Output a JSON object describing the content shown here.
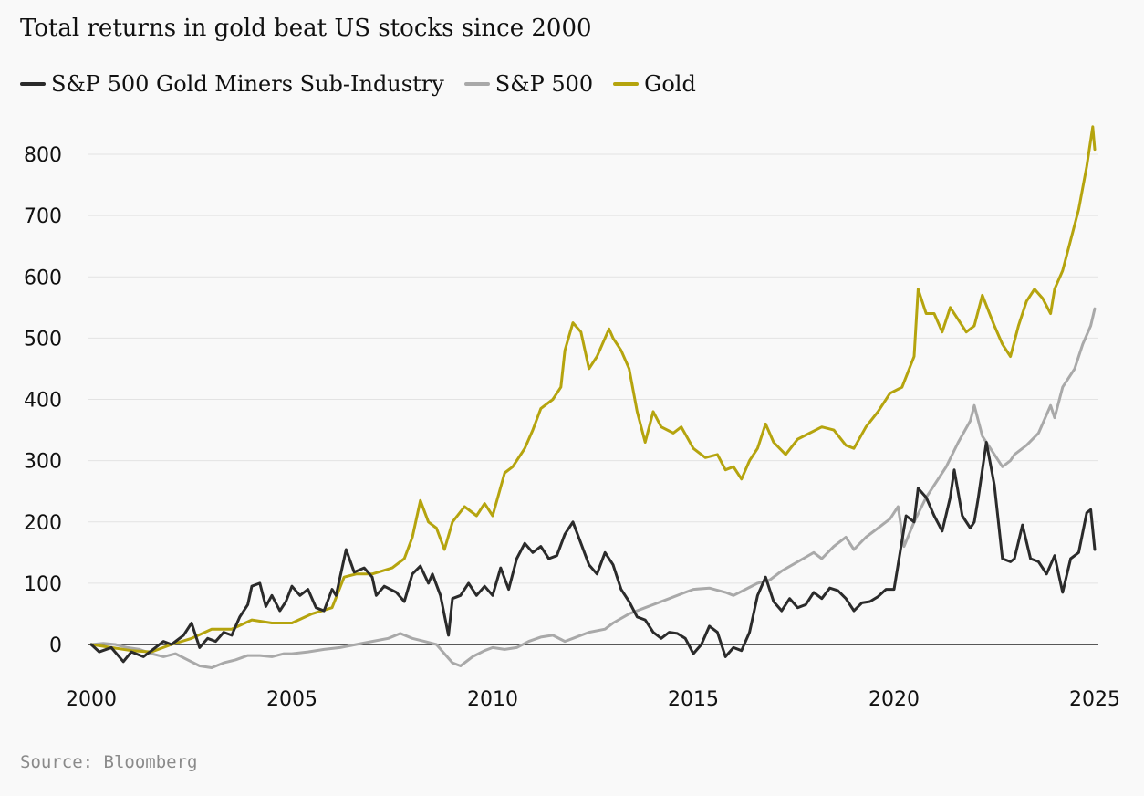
{
  "chart_data": {
    "type": "line",
    "title": "Total returns in gold beat US stocks since 2000",
    "xlabel": "",
    "ylabel": "",
    "xlim": [
      2000,
      2025
    ],
    "ylim": [
      -40,
      870
    ],
    "x_ticks": [
      "2000",
      "2005",
      "2010",
      "2015",
      "2020",
      "2025"
    ],
    "y_ticks": [
      "0",
      "100",
      "200",
      "300",
      "400",
      "500",
      "600",
      "700",
      "800"
    ],
    "grid": true,
    "legend_position": "top-left",
    "source": "Source: Bloomberg",
    "series": [
      {
        "name": "S&P 500 Gold Miners Sub-Industry",
        "color": "#2b2b2b",
        "points": [
          [
            2000.0,
            0
          ],
          [
            2000.2,
            -12
          ],
          [
            2000.5,
            -5
          ],
          [
            2000.8,
            -28
          ],
          [
            2001.0,
            -12
          ],
          [
            2001.3,
            -20
          ],
          [
            2001.6,
            -5
          ],
          [
            2001.8,
            5
          ],
          [
            2002.0,
            0
          ],
          [
            2002.3,
            15
          ],
          [
            2002.5,
            35
          ],
          [
            2002.7,
            -5
          ],
          [
            2002.9,
            10
          ],
          [
            2003.1,
            5
          ],
          [
            2003.3,
            20
          ],
          [
            2003.5,
            15
          ],
          [
            2003.7,
            45
          ],
          [
            2003.9,
            65
          ],
          [
            2004.0,
            95
          ],
          [
            2004.2,
            100
          ],
          [
            2004.35,
            62
          ],
          [
            2004.5,
            80
          ],
          [
            2004.7,
            55
          ],
          [
            2004.85,
            70
          ],
          [
            2005.0,
            95
          ],
          [
            2005.2,
            80
          ],
          [
            2005.4,
            90
          ],
          [
            2005.6,
            60
          ],
          [
            2005.8,
            55
          ],
          [
            2006.0,
            90
          ],
          [
            2006.1,
            80
          ],
          [
            2006.35,
            155
          ],
          [
            2006.55,
            118
          ],
          [
            2006.8,
            125
          ],
          [
            2007.0,
            110
          ],
          [
            2007.1,
            80
          ],
          [
            2007.3,
            95
          ],
          [
            2007.6,
            85
          ],
          [
            2007.8,
            70
          ],
          [
            2008.0,
            115
          ],
          [
            2008.2,
            128
          ],
          [
            2008.4,
            100
          ],
          [
            2008.5,
            115
          ],
          [
            2008.7,
            80
          ],
          [
            2008.9,
            15
          ],
          [
            2009.0,
            75
          ],
          [
            2009.2,
            80
          ],
          [
            2009.4,
            100
          ],
          [
            2009.6,
            80
          ],
          [
            2009.8,
            95
          ],
          [
            2010.0,
            80
          ],
          [
            2010.2,
            125
          ],
          [
            2010.4,
            90
          ],
          [
            2010.6,
            140
          ],
          [
            2010.8,
            165
          ],
          [
            2011.0,
            150
          ],
          [
            2011.2,
            160
          ],
          [
            2011.4,
            140
          ],
          [
            2011.6,
            145
          ],
          [
            2011.8,
            180
          ],
          [
            2012.0,
            200
          ],
          [
            2012.2,
            165
          ],
          [
            2012.4,
            130
          ],
          [
            2012.6,
            115
          ],
          [
            2012.8,
            150
          ],
          [
            2013.0,
            130
          ],
          [
            2013.2,
            90
          ],
          [
            2013.4,
            70
          ],
          [
            2013.6,
            45
          ],
          [
            2013.8,
            40
          ],
          [
            2014.0,
            20
          ],
          [
            2014.2,
            10
          ],
          [
            2014.4,
            20
          ],
          [
            2014.6,
            18
          ],
          [
            2014.8,
            10
          ],
          [
            2015.0,
            -15
          ],
          [
            2015.2,
            0
          ],
          [
            2015.4,
            30
          ],
          [
            2015.6,
            20
          ],
          [
            2015.8,
            -20
          ],
          [
            2016.0,
            -5
          ],
          [
            2016.2,
            -10
          ],
          [
            2016.4,
            20
          ],
          [
            2016.6,
            80
          ],
          [
            2016.8,
            110
          ],
          [
            2017.0,
            70
          ],
          [
            2017.2,
            55
          ],
          [
            2017.4,
            75
          ],
          [
            2017.6,
            60
          ],
          [
            2017.8,
            65
          ],
          [
            2018.0,
            85
          ],
          [
            2018.2,
            75
          ],
          [
            2018.4,
            92
          ],
          [
            2018.6,
            88
          ],
          [
            2018.8,
            75
          ],
          [
            2019.0,
            55
          ],
          [
            2019.2,
            68
          ],
          [
            2019.4,
            70
          ],
          [
            2019.6,
            78
          ],
          [
            2019.8,
            90
          ],
          [
            2020.0,
            90
          ],
          [
            2020.1,
            130
          ],
          [
            2020.3,
            210
          ],
          [
            2020.5,
            200
          ],
          [
            2020.6,
            255
          ],
          [
            2020.8,
            240
          ],
          [
            2021.0,
            210
          ],
          [
            2021.2,
            185
          ],
          [
            2021.4,
            240
          ],
          [
            2021.5,
            285
          ],
          [
            2021.7,
            210
          ],
          [
            2021.9,
            190
          ],
          [
            2022.0,
            200
          ],
          [
            2022.1,
            240
          ],
          [
            2022.3,
            330
          ],
          [
            2022.5,
            260
          ],
          [
            2022.7,
            140
          ],
          [
            2022.9,
            135
          ],
          [
            2023.0,
            140
          ],
          [
            2023.2,
            195
          ],
          [
            2023.4,
            140
          ],
          [
            2023.6,
            135
          ],
          [
            2023.8,
            115
          ],
          [
            2024.0,
            145
          ],
          [
            2024.2,
            85
          ],
          [
            2024.4,
            140
          ],
          [
            2024.6,
            150
          ],
          [
            2024.8,
            215
          ],
          [
            2024.9,
            220
          ],
          [
            2025.0,
            155
          ]
        ]
      },
      {
        "name": "S&P 500",
        "color": "#a9a9a9",
        "points": [
          [
            2000.0,
            0
          ],
          [
            2000.3,
            2
          ],
          [
            2000.6,
            0
          ],
          [
            2000.9,
            -5
          ],
          [
            2001.2,
            -8
          ],
          [
            2001.5,
            -15
          ],
          [
            2001.8,
            -20
          ],
          [
            2002.1,
            -15
          ],
          [
            2002.4,
            -25
          ],
          [
            2002.7,
            -35
          ],
          [
            2003.0,
            -38
          ],
          [
            2003.3,
            -30
          ],
          [
            2003.6,
            -25
          ],
          [
            2003.9,
            -18
          ],
          [
            2004.2,
            -18
          ],
          [
            2004.5,
            -20
          ],
          [
            2004.8,
            -15
          ],
          [
            2005.0,
            -15
          ],
          [
            2005.4,
            -12
          ],
          [
            2005.8,
            -8
          ],
          [
            2006.2,
            -5
          ],
          [
            2006.6,
            0
          ],
          [
            2007.0,
            5
          ],
          [
            2007.4,
            10
          ],
          [
            2007.7,
            18
          ],
          [
            2008.0,
            10
          ],
          [
            2008.3,
            5
          ],
          [
            2008.6,
            0
          ],
          [
            2008.8,
            -15
          ],
          [
            2009.0,
            -30
          ],
          [
            2009.2,
            -35
          ],
          [
            2009.5,
            -20
          ],
          [
            2009.8,
            -10
          ],
          [
            2010.0,
            -5
          ],
          [
            2010.3,
            -8
          ],
          [
            2010.6,
            -5
          ],
          [
            2010.9,
            5
          ],
          [
            2011.2,
            12
          ],
          [
            2011.5,
            15
          ],
          [
            2011.8,
            5
          ],
          [
            2012.0,
            10
          ],
          [
            2012.4,
            20
          ],
          [
            2012.8,
            25
          ],
          [
            2013.0,
            35
          ],
          [
            2013.4,
            50
          ],
          [
            2013.8,
            60
          ],
          [
            2014.0,
            65
          ],
          [
            2014.4,
            75
          ],
          [
            2014.8,
            85
          ],
          [
            2015.0,
            90
          ],
          [
            2015.4,
            92
          ],
          [
            2015.8,
            85
          ],
          [
            2016.0,
            80
          ],
          [
            2016.3,
            90
          ],
          [
            2016.6,
            100
          ],
          [
            2016.9,
            105
          ],
          [
            2017.2,
            120
          ],
          [
            2017.6,
            135
          ],
          [
            2018.0,
            150
          ],
          [
            2018.2,
            140
          ],
          [
            2018.5,
            160
          ],
          [
            2018.8,
            175
          ],
          [
            2019.0,
            155
          ],
          [
            2019.3,
            175
          ],
          [
            2019.6,
            190
          ],
          [
            2019.9,
            205
          ],
          [
            2020.1,
            225
          ],
          [
            2020.25,
            160
          ],
          [
            2020.5,
            200
          ],
          [
            2020.8,
            240
          ],
          [
            2021.0,
            260
          ],
          [
            2021.3,
            290
          ],
          [
            2021.6,
            330
          ],
          [
            2021.9,
            365
          ],
          [
            2022.0,
            390
          ],
          [
            2022.2,
            340
          ],
          [
            2022.4,
            320
          ],
          [
            2022.7,
            290
          ],
          [
            2022.9,
            300
          ],
          [
            2023.0,
            310
          ],
          [
            2023.3,
            325
          ],
          [
            2023.6,
            345
          ],
          [
            2023.9,
            390
          ],
          [
            2024.0,
            370
          ],
          [
            2024.2,
            420
          ],
          [
            2024.5,
            450
          ],
          [
            2024.7,
            490
          ],
          [
            2024.9,
            520
          ],
          [
            2025.0,
            548
          ]
        ]
      },
      {
        "name": "Gold",
        "color": "#b5a40e",
        "points": [
          [
            2000.0,
            0
          ],
          [
            2000.5,
            -5
          ],
          [
            2001.0,
            -10
          ],
          [
            2001.5,
            -12
          ],
          [
            2002.0,
            0
          ],
          [
            2002.5,
            10
          ],
          [
            2003.0,
            25
          ],
          [
            2003.5,
            25
          ],
          [
            2004.0,
            40
          ],
          [
            2004.5,
            35
          ],
          [
            2005.0,
            35
          ],
          [
            2005.5,
            50
          ],
          [
            2006.0,
            60
          ],
          [
            2006.3,
            110
          ],
          [
            2006.6,
            115
          ],
          [
            2007.0,
            115
          ],
          [
            2007.5,
            125
          ],
          [
            2007.8,
            140
          ],
          [
            2008.0,
            175
          ],
          [
            2008.2,
            235
          ],
          [
            2008.4,
            200
          ],
          [
            2008.6,
            190
          ],
          [
            2008.8,
            155
          ],
          [
            2009.0,
            200
          ],
          [
            2009.3,
            225
          ],
          [
            2009.6,
            210
          ],
          [
            2009.8,
            230
          ],
          [
            2010.0,
            210
          ],
          [
            2010.3,
            280
          ],
          [
            2010.5,
            290
          ],
          [
            2010.8,
            320
          ],
          [
            2011.0,
            350
          ],
          [
            2011.2,
            385
          ],
          [
            2011.5,
            400
          ],
          [
            2011.7,
            420
          ],
          [
            2011.8,
            480
          ],
          [
            2012.0,
            525
          ],
          [
            2012.2,
            510
          ],
          [
            2012.4,
            450
          ],
          [
            2012.6,
            470
          ],
          [
            2012.9,
            515
          ],
          [
            2013.0,
            500
          ],
          [
            2013.2,
            480
          ],
          [
            2013.4,
            450
          ],
          [
            2013.6,
            380
          ],
          [
            2013.8,
            330
          ],
          [
            2014.0,
            380
          ],
          [
            2014.2,
            355
          ],
          [
            2014.5,
            345
          ],
          [
            2014.7,
            355
          ],
          [
            2015.0,
            320
          ],
          [
            2015.3,
            305
          ],
          [
            2015.6,
            310
          ],
          [
            2015.8,
            285
          ],
          [
            2016.0,
            290
          ],
          [
            2016.2,
            270
          ],
          [
            2016.4,
            300
          ],
          [
            2016.6,
            320
          ],
          [
            2016.8,
            360
          ],
          [
            2017.0,
            330
          ],
          [
            2017.3,
            310
          ],
          [
            2017.6,
            335
          ],
          [
            2017.9,
            345
          ],
          [
            2018.2,
            355
          ],
          [
            2018.5,
            350
          ],
          [
            2018.8,
            325
          ],
          [
            2019.0,
            320
          ],
          [
            2019.3,
            355
          ],
          [
            2019.6,
            380
          ],
          [
            2019.9,
            410
          ],
          [
            2020.2,
            420
          ],
          [
            2020.5,
            470
          ],
          [
            2020.6,
            580
          ],
          [
            2020.8,
            540
          ],
          [
            2021.0,
            540
          ],
          [
            2021.2,
            510
          ],
          [
            2021.4,
            550
          ],
          [
            2021.6,
            530
          ],
          [
            2021.8,
            510
          ],
          [
            2022.0,
            520
          ],
          [
            2022.2,
            570
          ],
          [
            2022.5,
            520
          ],
          [
            2022.7,
            490
          ],
          [
            2022.9,
            470
          ],
          [
            2023.1,
            520
          ],
          [
            2023.3,
            560
          ],
          [
            2023.5,
            580
          ],
          [
            2023.7,
            565
          ],
          [
            2023.9,
            540
          ],
          [
            2024.0,
            580
          ],
          [
            2024.2,
            610
          ],
          [
            2024.4,
            660
          ],
          [
            2024.6,
            710
          ],
          [
            2024.8,
            780
          ],
          [
            2024.95,
            845
          ],
          [
            2025.0,
            808
          ]
        ]
      }
    ]
  }
}
